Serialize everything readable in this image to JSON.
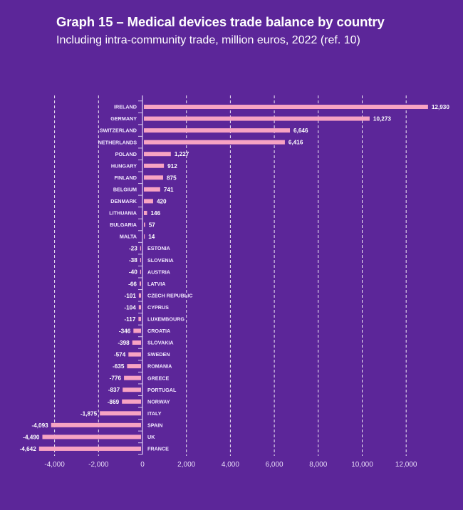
{
  "header": {
    "title": "Graph 15 – Medical devices trade balance by country",
    "subtitle": "Including intra-community trade, million euros, 2022 (ref. 10)"
  },
  "colors": {
    "background": "#5c2699",
    "bar": "#f7a3c3",
    "grid": "#ffffff",
    "axis": "#d9c7f0"
  },
  "chart_data": {
    "type": "bar",
    "orientation": "horizontal",
    "title": "Graph 15 – Medical devices trade balance by country",
    "subtitle": "Including intra-community trade, million euros, 2022 (ref. 10)",
    "xlabel": "",
    "ylabel": "",
    "xlim": [
      -4800,
      13300
    ],
    "grid": true,
    "legend": "none",
    "x_ticks": [
      -4000,
      -2000,
      0,
      2000,
      4000,
      6000,
      8000,
      10000,
      12000
    ],
    "x_tick_labels": [
      "-4,000",
      "-2,000",
      "0",
      "2,000",
      "4,000",
      "6,000",
      "8,000",
      "10,000",
      "12,000"
    ],
    "categories": [
      "IRELAND",
      "GERMANY",
      "SWITZERLAND",
      "NETHERLANDS",
      "POLAND",
      "HUNGARY",
      "FINLAND",
      "BELGIUM",
      "DENMARK",
      "LITHUANIA",
      "BULGARIA",
      "MALTA",
      "ESTONIA",
      "SLOVENIA",
      "AUSTRIA",
      "LATVIA",
      "CZECH REPUBLIC",
      "CYPRUS",
      "LUXEMBOURG",
      "CROATIA",
      "SLOVAKIA",
      "SWEDEN",
      "ROMANIA",
      "GREECE",
      "PORTUGAL",
      "NORWAY",
      "ITALY",
      "SPAIN",
      "UK",
      "FRANCE"
    ],
    "values": [
      12930,
      10273,
      6646,
      6416,
      1227,
      912,
      875,
      741,
      420,
      146,
      57,
      14,
      -23,
      -38,
      -40,
      -66,
      -101,
      -104,
      -117,
      -346,
      -398,
      -574,
      -635,
      -776,
      -837,
      -869,
      -1875,
      -4093,
      -4490,
      -4642
    ],
    "value_labels": [
      "12,930",
      "10,273",
      "6,646",
      "6,416",
      "1,227",
      "912",
      "875",
      "741",
      "420",
      "146",
      "57",
      "14",
      "-23",
      "-38",
      "-40",
      "-66",
      "-101",
      "-104",
      "-117",
      "-346",
      "-398",
      "-574",
      "-635",
      "-776",
      "-837",
      "-869",
      "-1,875",
      "-4,093",
      "-4,490",
      "-4,642"
    ]
  }
}
